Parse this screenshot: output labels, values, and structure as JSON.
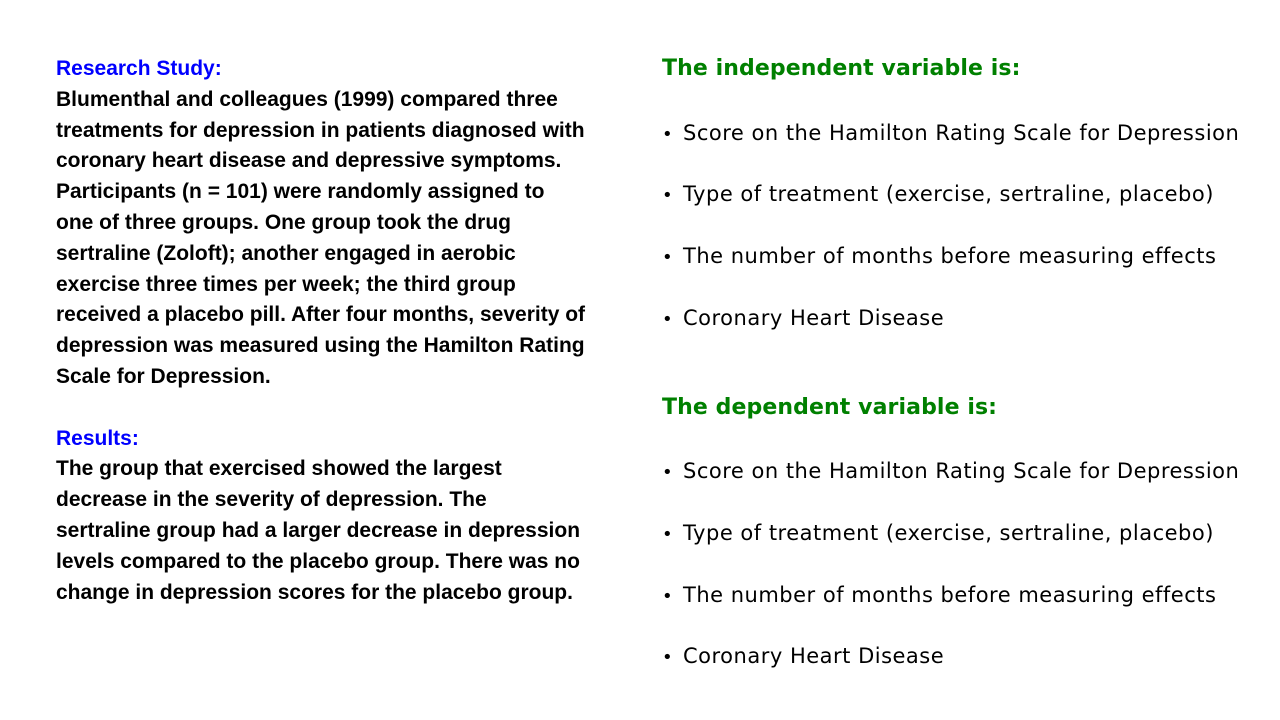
{
  "study": {
    "heading": "Research Study:",
    "text": "Blumenthal and colleagues (1999) compared three treatments for depression in patients diagnosed with coronary heart disease and depressive symptoms. Participants (n = 101) were randomly assigned to one of three groups. One group took the drug sertraline (Zoloft); another engaged in aerobic exercise three times per week; the third group received a placebo pill. After four months, severity of depression was measured using the Hamilton Rating Scale for Depression."
  },
  "results": {
    "heading": "Results:",
    "text": "The group that exercised showed the largest decrease in the severity of depression. The sertraline group had a larger decrease in depression levels compared to the placebo group. There was no change in depression scores for the placebo group."
  },
  "questions": [
    {
      "heading": "The independent variable is:",
      "options": [
        "Score on the Hamilton Rating Scale for Depression",
        "Type of treatment (exercise, sertraline, placebo)",
        "The number of months before measuring effects",
        "Coronary Heart Disease"
      ]
    },
    {
      "heading": "The dependent variable is:",
      "options": [
        "Score on the Hamilton Rating Scale for Depression",
        "Type of treatment (exercise, sertraline, placebo)",
        "The number of months before measuring effects",
        "Coronary Heart Disease"
      ]
    }
  ],
  "bullet_symbol": "•",
  "colors": {
    "study_heading": "#0000ff",
    "question_heading": "#008000",
    "body_text": "#000000"
  }
}
